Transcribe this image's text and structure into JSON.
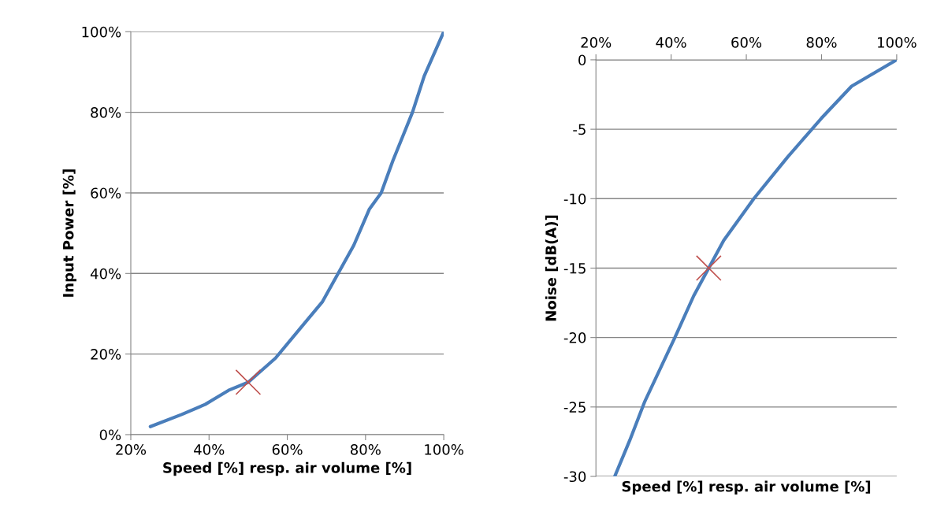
{
  "chart_data": [
    {
      "type": "line",
      "xlabel": "Speed [%] resp. air volume [%]",
      "ylabel": "Input Power [%]",
      "xlim": [
        20,
        100
      ],
      "ylim": [
        0,
        100
      ],
      "xticks": [
        {
          "value": 20,
          "label": "20%"
        },
        {
          "value": 40,
          "label": "40%"
        },
        {
          "value": 60,
          "label": "60%"
        },
        {
          "value": 80,
          "label": "80%"
        },
        {
          "value": 100,
          "label": "100%"
        }
      ],
      "yticks": [
        {
          "value": 0,
          "label": "0%"
        },
        {
          "value": 20,
          "label": "20%"
        },
        {
          "value": 40,
          "label": "40%"
        },
        {
          "value": 60,
          "label": "60%"
        },
        {
          "value": 80,
          "label": "80%"
        },
        {
          "value": 100,
          "label": "100%"
        }
      ],
      "grid": "y",
      "series": [
        {
          "color": "#4a7ebb",
          "marker": "none",
          "x": [
            25,
            33,
            39,
            45,
            50,
            57,
            63,
            69,
            73,
            77,
            81,
            84,
            87,
            92,
            95,
            100
          ],
          "values": [
            2,
            5,
            7.5,
            11,
            13,
            19,
            26,
            33,
            40,
            47,
            56,
            60,
            68,
            80,
            89,
            100
          ]
        },
        {
          "type": "scatter",
          "color": "#c0504d",
          "marker": "cross",
          "x": [
            50
          ],
          "values": [
            13
          ]
        }
      ]
    },
    {
      "type": "line",
      "xlabel": "Speed [%] resp. air volume [%]",
      "ylabel": "Noise [dB(A)]",
      "xlim": [
        20,
        100
      ],
      "ylim": [
        -30,
        0
      ],
      "xticks": [
        {
          "value": 20,
          "label": "20%"
        },
        {
          "value": 40,
          "label": "40%"
        },
        {
          "value": 60,
          "label": "60%"
        },
        {
          "value": 80,
          "label": "80%"
        },
        {
          "value": 100,
          "label": "100%"
        }
      ],
      "yticks": [
        0,
        -5,
        -10,
        -15,
        -20,
        -25,
        -30
      ],
      "grid": "y",
      "series": [
        {
          "color": "#4a7ebb",
          "marker": "none",
          "x": [
            25,
            29,
            33,
            41,
            46,
            50,
            54,
            62,
            71,
            80,
            88,
            100
          ],
          "values": [
            -30,
            -27.4,
            -24.6,
            -20,
            -17,
            -15,
            -13,
            -10,
            -7,
            -4.2,
            -1.9,
            0
          ]
        },
        {
          "type": "scatter",
          "color": "#c0504d",
          "marker": "cross",
          "x": [
            50
          ],
          "values": [
            -15
          ]
        }
      ]
    }
  ]
}
